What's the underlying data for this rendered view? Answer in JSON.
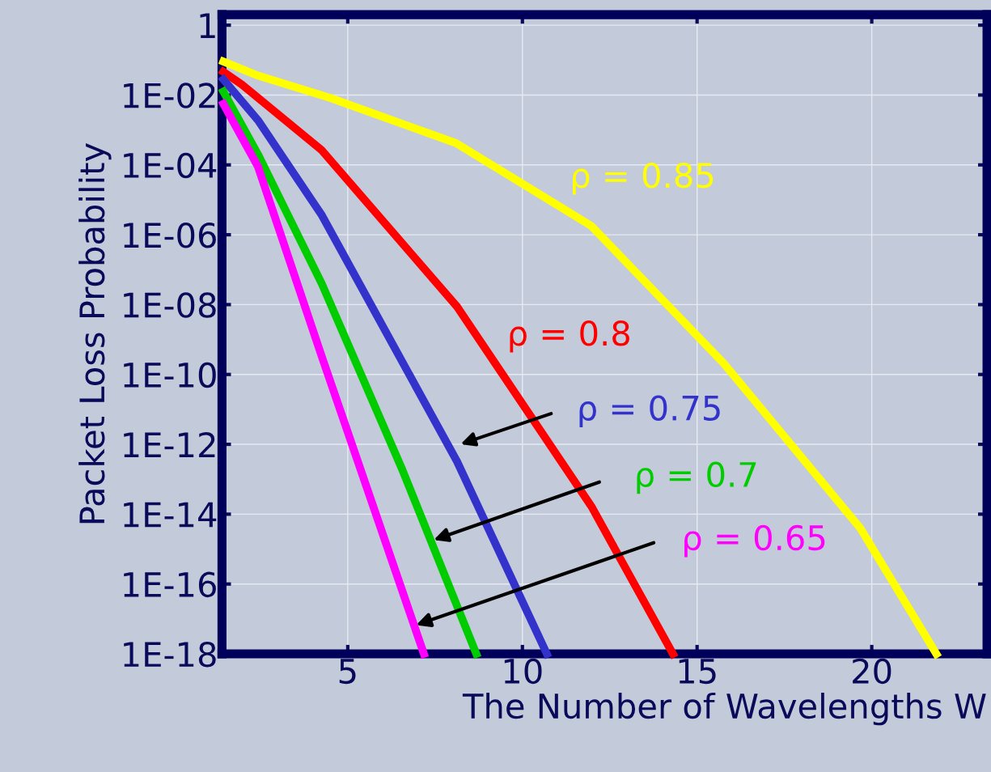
{
  "chart_data": {
    "type": "line",
    "xlabel": "The Number of Wavelengths W",
    "ylabel": "Packet Loss Probability",
    "log": "y",
    "grid": true,
    "marker": "none",
    "line_style": "solid",
    "xlim": [
      1.4,
      23.3
    ],
    "xticks": [
      5,
      10,
      15,
      20
    ],
    "ylim": [
      1e-18,
      2
    ],
    "yticks": [
      1,
      {
        "value": 0.01,
        "label": "1E-02"
      },
      {
        "value": 0.0001,
        "label": "1E-04"
      },
      {
        "value": 1e-06,
        "label": "1E-06"
      },
      {
        "value": 1e-08,
        "label": "1E-08"
      },
      {
        "value": 1e-10,
        "label": "1E-10"
      },
      {
        "value": 1e-12,
        "label": "1E-12"
      },
      {
        "value": 1e-14,
        "label": "1E-14"
      },
      {
        "value": 1e-16,
        "label": "1E-16"
      },
      {
        "value": 1e-18,
        "label": "1E-18"
      }
    ],
    "series": [
      {
        "name": "ρ = 0.85",
        "color": "#ffff00",
        "x": [
          1.44,
          2.43,
          4.49,
          8.1,
          11.97,
          15.76,
          19.67,
          21.85
        ],
        "values": [
          0.091,
          0.036,
          0.0083,
          0.00042,
          1.8e-06,
          2.1e-10,
          4e-15,
          1e-18
        ]
      },
      {
        "name": "ρ = 0.8",
        "color": "#ff0000",
        "x": [
          1.44,
          1.97,
          4.26,
          8.13,
          11.97,
          14.31
        ],
        "values": [
          0.046,
          0.02,
          0.00026,
          8.7e-09,
          1.7e-14,
          1e-18
        ]
      },
      {
        "name": "ρ = 0.75",
        "color": "#3333cc",
        "x": [
          1.44,
          2.43,
          4.26,
          8.13,
          10.7
        ],
        "values": [
          0.028,
          0.0019,
          3.6e-06,
          3.2e-13,
          1e-18
        ]
      },
      {
        "name": "ρ = 0.7",
        "color": "#00cc00",
        "x": [
          1.44,
          2.43,
          4.26,
          6.56,
          8.68
        ],
        "values": [
          0.0126,
          0.0002,
          3.9e-08,
          1.9e-13,
          1e-18
        ]
      },
      {
        "name": "ρ = 0.65",
        "color": "#ff00ff",
        "x": [
          1.44,
          2.43,
          4.26,
          7.18
        ],
        "values": [
          0.0056,
          8.9e-05,
          3.2e-10,
          1e-18
        ]
      }
    ]
  }
}
